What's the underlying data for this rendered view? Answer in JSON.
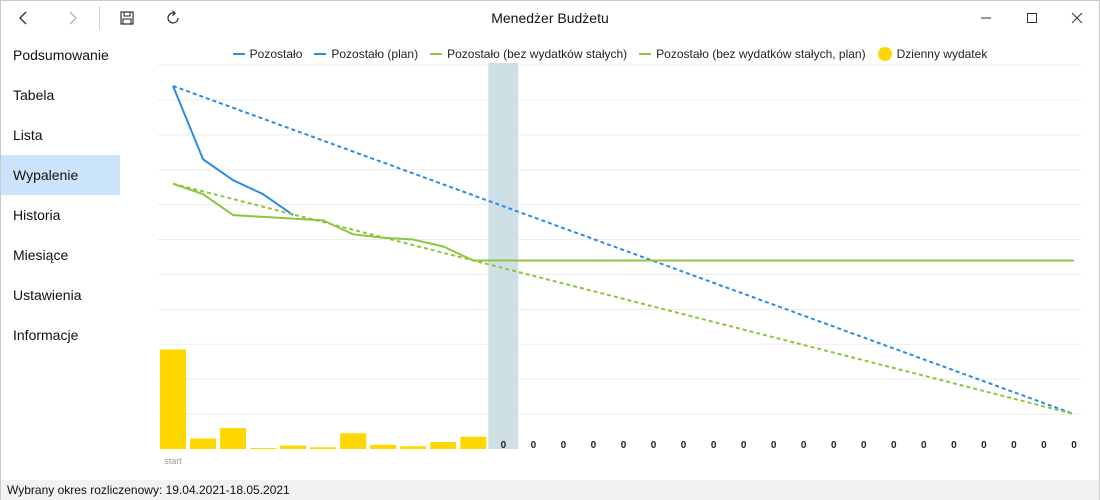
{
  "window": {
    "title": "Menedżer Budżetu"
  },
  "sidebar": {
    "items": [
      {
        "label": "Podsumowanie",
        "active": false
      },
      {
        "label": "Tabela",
        "active": false
      },
      {
        "label": "Lista",
        "active": false
      },
      {
        "label": "Wypalenie",
        "active": true
      },
      {
        "label": "Historia",
        "active": false
      },
      {
        "label": "Miesiące",
        "active": false
      },
      {
        "label": "Ustawienia",
        "active": false
      },
      {
        "label": "Informacje",
        "active": false
      }
    ]
  },
  "statusbar": {
    "text": "Wybrany okres rozliczenowy: 19.04.2021-18.05.2021"
  },
  "colors": {
    "blue": "#2b8ce6",
    "green": "#8cc63f",
    "yellow": "#ffd700",
    "today_band": "#cfdfe6",
    "grid": "#ececec",
    "active_nav": "#cce4fb"
  },
  "icons": {
    "back": "chevron-left-icon",
    "forward": "chevron-right-icon",
    "save": "save-icon",
    "refresh": "refresh-icon",
    "minimize": "minimize-icon",
    "maximize": "maximize-icon",
    "close": "close-icon"
  },
  "chart_data": {
    "type": "line",
    "legend": [
      {
        "label": "Pozostało",
        "color": "#2b8ce6",
        "style": "line"
      },
      {
        "label": "Pozostało (plan)",
        "color": "#2b8ce6",
        "style": "line"
      },
      {
        "label": "Pozostało (bez wydatków stałych)",
        "color": "#8cc63f",
        "style": "line"
      },
      {
        "label": "Pozostało (bez wydatków stałych, plan)",
        "color": "#8cc63f",
        "style": "line"
      },
      {
        "label": "Dzienny wydatek",
        "color": "#ffd700",
        "style": "dot"
      }
    ],
    "legend_position": "top",
    "x_first_label": "start",
    "days": 31,
    "today_index": 11,
    "ylim": [
      0,
      110
    ],
    "grid": true,
    "series": [
      {
        "name": "Pozostało",
        "style": "solid",
        "color": "#2b8ce6",
        "values": [
          104,
          83,
          77,
          73,
          67
        ]
      },
      {
        "name": "Pozostało (plan)",
        "style": "dashed",
        "color": "#2b8ce6",
        "values": [
          104,
          10
        ]
      },
      {
        "name": "Pozostało (bez wydatków stałych)",
        "style": "solid",
        "color": "#8cc63f",
        "values": [
          76,
          73,
          67,
          66.5,
          66,
          65.5,
          61.5,
          60.5,
          60,
          58,
          54,
          54,
          54,
          54,
          54,
          54,
          54,
          54,
          54,
          54,
          54,
          54,
          54,
          54,
          54,
          54,
          54,
          54,
          54,
          54,
          54
        ]
      },
      {
        "name": "Pozostało (bez wydatków stałych, plan)",
        "style": "dashed",
        "color": "#8cc63f",
        "values": [
          76,
          10
        ]
      }
    ],
    "bars": {
      "name": "Dzienny wydatek",
      "values": [
        28.5,
        3,
        6,
        0.3,
        1,
        0.5,
        4.5,
        1.2,
        0.8,
        2,
        3.5,
        0,
        0,
        0,
        0,
        0,
        0,
        0,
        0,
        0,
        0,
        0,
        0,
        0,
        0,
        0,
        0,
        0,
        0,
        0,
        0
      ],
      "zero_labels": [
        "0",
        "0",
        "0",
        "0",
        "0",
        "0",
        "0",
        "0",
        "0",
        "0",
        "0",
        "0",
        "0",
        "0",
        "0",
        "0",
        "0",
        "0",
        "0",
        "0"
      ]
    }
  }
}
